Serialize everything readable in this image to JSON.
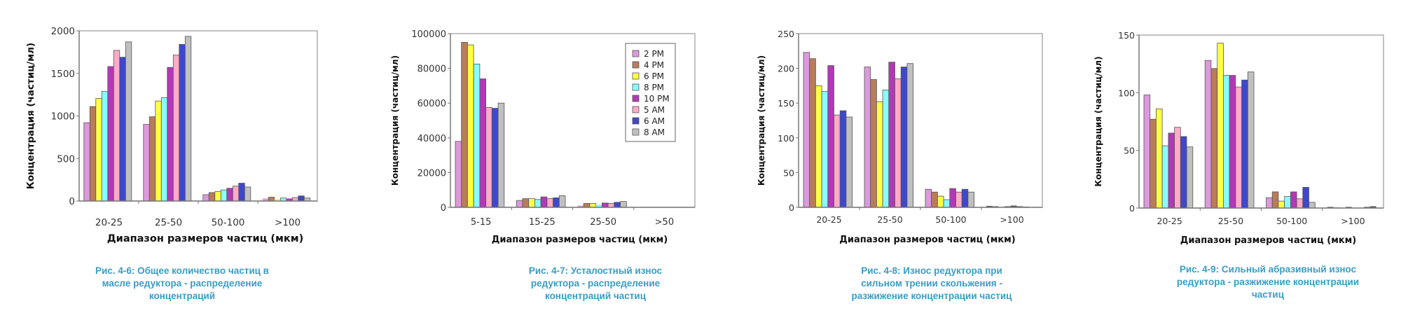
{
  "series_colors": [
    "#dc99dc",
    "#b97c5a",
    "#ffff44",
    "#88ffff",
    "#b238b8",
    "#ffaac8",
    "#3d48cc",
    "#c0c0c0"
  ],
  "chart_data": [
    {
      "id": "fig-4-6",
      "type": "bar",
      "title": "",
      "xlabel": "Диапазон размеров частиц (мкм)",
      "ylabel": "Концентрация (частиц/мл)",
      "categories": [
        "20-25",
        "25-50",
        "50-100",
        ">100"
      ],
      "ylim": [
        0,
        2000
      ],
      "yticks": [
        0,
        500,
        1000,
        1500,
        2000
      ],
      "grid": false,
      "legend": null,
      "series": [
        {
          "name": "2 PM",
          "values": [
            920,
            900,
            75,
            30
          ]
        },
        {
          "name": "4 PM",
          "values": [
            1110,
            990,
            100,
            45
          ]
        },
        {
          "name": "6 PM",
          "values": [
            1205,
            1175,
            110,
            25
          ]
        },
        {
          "name": "8 PM",
          "values": [
            1290,
            1215,
            130,
            35
          ]
        },
        {
          "name": "10 PM",
          "values": [
            1580,
            1570,
            150,
            30
          ]
        },
        {
          "name": "5 AM",
          "values": [
            1770,
            1715,
            175,
            40
          ]
        },
        {
          "name": "6 AM",
          "values": [
            1690,
            1840,
            210,
            60
          ]
        },
        {
          "name": "8 AM",
          "values": [
            1870,
            1935,
            165,
            35
          ]
        }
      ],
      "caption": [
        "Рис. 4-6: Общее количество частиц в",
        "масле редуктора - распределение",
        "концентраций"
      ]
    },
    {
      "id": "fig-4-7",
      "type": "bar",
      "title": "",
      "xlabel": "Диапазон размеров частиц (мкм)",
      "ylabel": "Концентрация (частиц/мл)",
      "categories": [
        "5-15",
        "15-25",
        "25-50",
        ">50"
      ],
      "ylim": [
        0,
        100000
      ],
      "yticks": [
        0,
        20000,
        40000,
        60000,
        80000,
        100000
      ],
      "grid": false,
      "legend": "top-right",
      "series": [
        {
          "name": "2 PM",
          "values": [
            38000,
            4000,
            1000,
            0
          ]
        },
        {
          "name": "4 PM",
          "values": [
            95000,
            5000,
            2200,
            0
          ]
        },
        {
          "name": "6 PM",
          "values": [
            93500,
            5000,
            2200,
            0
          ]
        },
        {
          "name": "8 PM",
          "values": [
            82500,
            4500,
            1500,
            0
          ]
        },
        {
          "name": "10 PM",
          "values": [
            74000,
            6000,
            2500,
            0
          ]
        },
        {
          "name": "5 AM",
          "values": [
            57500,
            5000,
            2200,
            0
          ]
        },
        {
          "name": "6 AM",
          "values": [
            57000,
            5500,
            2900,
            0
          ]
        },
        {
          "name": "8 AM",
          "values": [
            60000,
            6700,
            3400,
            0
          ]
        }
      ],
      "caption": [
        "Рис. 4-7: Усталостный износ",
        "редуктора - распределение",
        "концентраций частиц"
      ]
    },
    {
      "id": "fig-4-8",
      "type": "bar",
      "title": "",
      "xlabel": "Диапазон размеров частиц (мкм)",
      "ylabel": "Концентрация (частиц/мл)",
      "categories": [
        "20-25",
        "25-50",
        "50-100",
        ">100"
      ],
      "ylim": [
        0,
        250
      ],
      "yticks": [
        0,
        50,
        100,
        150,
        200,
        250
      ],
      "grid": false,
      "legend": null,
      "series": [
        {
          "name": "2 PM",
          "values": [
            223,
            202,
            26,
            2
          ]
        },
        {
          "name": "4 PM",
          "values": [
            214,
            184,
            22,
            1.5
          ]
        },
        {
          "name": "6 PM",
          "values": [
            175,
            152,
            16,
            0.5
          ]
        },
        {
          "name": "8 PM",
          "values": [
            167,
            169,
            11,
            1.5
          ]
        },
        {
          "name": "10 PM",
          "values": [
            204,
            209,
            27,
            2.5
          ]
        },
        {
          "name": "5 AM",
          "values": [
            133,
            185,
            22,
            1.5
          ]
        },
        {
          "name": "6 AM",
          "values": [
            139,
            202,
            26,
            1
          ]
        },
        {
          "name": "8 AM",
          "values": [
            130,
            207,
            22,
            0.5
          ]
        }
      ],
      "caption": [
        "Рис. 4-8: Износ редуктора при",
        "сильном трении скольжения -",
        "разжижение концентрации частиц"
      ]
    },
    {
      "id": "fig-4-9",
      "type": "bar",
      "title": "",
      "xlabel": "Диапазон размеров частиц (мкм)",
      "ylabel": "Концентрация (частиц/мл)",
      "categories": [
        "20-25",
        "25-50",
        "50-100",
        ">100"
      ],
      "ylim": [
        0,
        150
      ],
      "yticks": [
        0,
        50,
        100,
        150
      ],
      "grid": false,
      "legend": null,
      "series": [
        {
          "name": "2 PM",
          "values": [
            98,
            128,
            9,
            1
          ]
        },
        {
          "name": "4 PM",
          "values": [
            77,
            121,
            14,
            0.5
          ]
        },
        {
          "name": "6 PM",
          "values": [
            86,
            143,
            6,
            0
          ]
        },
        {
          "name": "8 PM",
          "values": [
            54,
            115,
            10,
            1
          ]
        },
        {
          "name": "10 PM",
          "values": [
            65,
            115,
            14,
            0
          ]
        },
        {
          "name": "5 AM",
          "values": [
            70,
            105,
            8,
            0
          ]
        },
        {
          "name": "6 AM",
          "values": [
            62,
            111,
            18,
            1
          ]
        },
        {
          "name": "8 AM",
          "values": [
            53,
            118,
            5,
            1.5
          ]
        }
      ],
      "caption": [
        "Рис. 4-9: Сильный абразивный износ",
        "редуктора - разжижение концентрации",
        "частиц"
      ]
    }
  ]
}
